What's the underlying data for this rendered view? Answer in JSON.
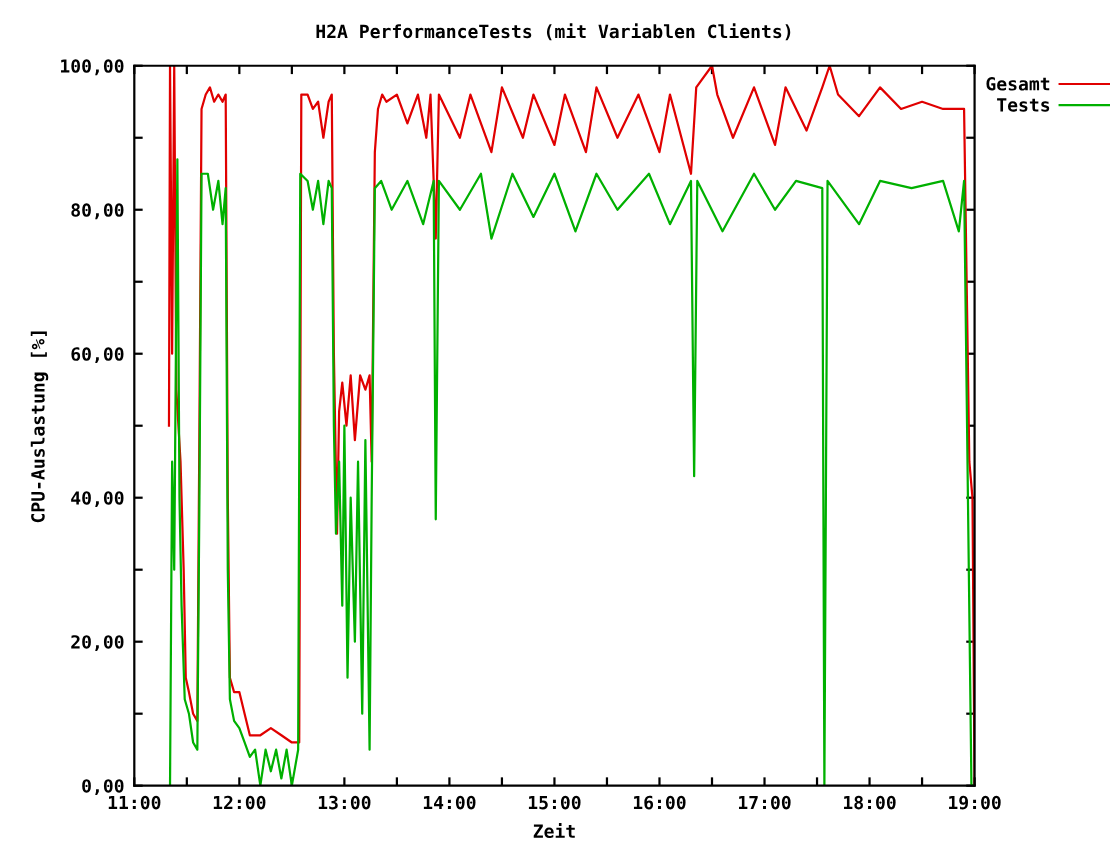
{
  "chart_data": {
    "type": "line",
    "title": "H2A PerformanceTests (mit Variablen Clients)",
    "xlabel": "Zeit",
    "ylabel": "CPU-Auslastung [%]",
    "xlim": [
      11,
      19
    ],
    "ylim": [
      0,
      100
    ],
    "xticks": [
      {
        "value": 11,
        "label": "11:00"
      },
      {
        "value": 11.5,
        "label": null
      },
      {
        "value": 12,
        "label": "12:00"
      },
      {
        "value": 12.5,
        "label": null
      },
      {
        "value": 13,
        "label": "13:00"
      },
      {
        "value": 13.5,
        "label": null
      },
      {
        "value": 14,
        "label": "14:00"
      },
      {
        "value": 14.5,
        "label": null
      },
      {
        "value": 15,
        "label": "15:00"
      },
      {
        "value": 15.5,
        "label": null
      },
      {
        "value": 16,
        "label": "16:00"
      },
      {
        "value": 16.5,
        "label": null
      },
      {
        "value": 17,
        "label": "17:00"
      },
      {
        "value": 17.5,
        "label": null
      },
      {
        "value": 18,
        "label": "18:00"
      },
      {
        "value": 18.5,
        "label": null
      },
      {
        "value": 19,
        "label": "19:00"
      }
    ],
    "yticks": [
      {
        "value": 0,
        "label": "0,00"
      },
      {
        "value": 10,
        "label": null
      },
      {
        "value": 20,
        "label": "20,00"
      },
      {
        "value": 30,
        "label": null
      },
      {
        "value": 40,
        "label": "40,00"
      },
      {
        "value": 50,
        "label": null
      },
      {
        "value": 60,
        "label": "60,00"
      },
      {
        "value": 70,
        "label": null
      },
      {
        "value": 80,
        "label": "80,00"
      },
      {
        "value": 90,
        "label": null
      },
      {
        "value": 100,
        "label": "100,00"
      }
    ],
    "grid": false,
    "legend": "top right",
    "marker": "none",
    "line_style": "solid",
    "series": [
      {
        "name": "Gesamt",
        "color": "#e00000",
        "x": [
          11.33,
          11.34,
          11.36,
          11.38,
          11.4,
          11.44,
          11.47,
          11.49,
          11.52,
          11.56,
          11.6,
          11.62,
          11.64,
          11.68,
          11.72,
          11.76,
          11.8,
          11.84,
          11.87,
          11.89,
          11.91,
          11.95,
          12.0,
          12.05,
          12.1,
          12.2,
          12.3,
          12.4,
          12.5,
          12.57,
          12.59,
          12.65,
          12.7,
          12.75,
          12.8,
          12.85,
          12.88,
          12.9,
          12.93,
          12.95,
          12.98,
          13.02,
          13.06,
          13.1,
          13.15,
          13.2,
          13.24,
          13.26,
          13.29,
          13.32,
          13.36,
          13.4,
          13.5,
          13.6,
          13.7,
          13.78,
          13.82,
          13.87,
          13.9,
          14.1,
          14.2,
          14.4,
          14.5,
          14.7,
          14.8,
          15.0,
          15.1,
          15.3,
          15.4,
          15.6,
          15.8,
          16.0,
          16.1,
          16.3,
          16.35,
          16.5,
          16.55,
          16.7,
          16.9,
          17.1,
          17.2,
          17.4,
          17.55,
          17.62,
          17.7,
          17.9,
          18.1,
          18.3,
          18.5,
          18.7,
          18.9,
          18.95,
          18.98,
          19.0
        ],
        "values": [
          50,
          100,
          60,
          100,
          55,
          45,
          30,
          15,
          13,
          10,
          9,
          50,
          94,
          96,
          97,
          95,
          96,
          95,
          96,
          40,
          15,
          13,
          13,
          10,
          7,
          7,
          8,
          7,
          6,
          6,
          96,
          96,
          94,
          95,
          90,
          95,
          96,
          60,
          35,
          52,
          56,
          50,
          57,
          48,
          57,
          55,
          57,
          45,
          88,
          94,
          96,
          95,
          96,
          92,
          96,
          90,
          96,
          76,
          96,
          90,
          96,
          88,
          97,
          90,
          96,
          89,
          96,
          88,
          97,
          90,
          96,
          88,
          96,
          85,
          97,
          100,
          96,
          90,
          97,
          89,
          97,
          91,
          97,
          100,
          96,
          93,
          97,
          94,
          95,
          94,
          94,
          45,
          40,
          0
        ]
      },
      {
        "name": "Tests",
        "color": "#00b000",
        "x": [
          11.34,
          11.36,
          11.38,
          11.41,
          11.43,
          11.45,
          11.48,
          11.52,
          11.56,
          11.6,
          11.62,
          11.64,
          11.7,
          11.75,
          11.8,
          11.84,
          11.87,
          11.89,
          11.91,
          11.95,
          12.0,
          12.05,
          12.1,
          12.15,
          12.2,
          12.25,
          12.3,
          12.35,
          12.4,
          12.45,
          12.5,
          12.56,
          12.58,
          12.65,
          12.7,
          12.75,
          12.8,
          12.85,
          12.88,
          12.9,
          12.92,
          12.95,
          12.98,
          13.0,
          13.03,
          13.06,
          13.1,
          13.13,
          13.17,
          13.2,
          13.24,
          13.26,
          13.29,
          13.35,
          13.45,
          13.6,
          13.75,
          13.85,
          13.87,
          13.9,
          14.1,
          14.3,
          14.4,
          14.6,
          14.8,
          15.0,
          15.2,
          15.4,
          15.6,
          15.9,
          16.1,
          16.3,
          16.33,
          16.36,
          16.6,
          16.9,
          17.1,
          17.3,
          17.55,
          17.57,
          17.6,
          17.9,
          18.1,
          18.4,
          18.7,
          18.85,
          18.9,
          18.97,
          19.0
        ],
        "values": [
          0,
          45,
          30,
          87,
          40,
          25,
          12,
          10,
          6,
          5,
          40,
          85,
          85,
          80,
          84,
          78,
          83,
          30,
          12,
          9,
          8,
          6,
          4,
          5,
          0,
          5,
          2,
          5,
          1,
          5,
          0,
          5,
          85,
          84,
          80,
          84,
          78,
          84,
          83,
          50,
          35,
          45,
          25,
          50,
          15,
          40,
          20,
          45,
          10,
          48,
          5,
          40,
          83,
          84,
          80,
          84,
          78,
          84,
          37,
          84,
          80,
          85,
          76,
          85,
          79,
          85,
          77,
          85,
          80,
          85,
          78,
          84,
          43,
          84,
          77,
          85,
          80,
          84,
          83,
          0,
          84,
          78,
          84,
          83,
          84,
          77,
          84,
          0,
          0
        ]
      }
    ]
  }
}
